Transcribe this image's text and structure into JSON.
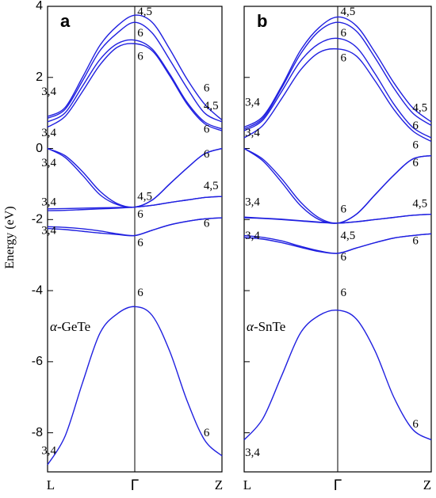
{
  "chart_data": [
    {
      "type": "line",
      "panel_label": "a",
      "material_prefix": "α",
      "material_suffix": "-GeTe",
      "ylabel": "Energy (eV)",
      "ylim": [
        -9.1,
        4.0
      ],
      "yticks": [
        4,
        2,
        0,
        -2,
        -4,
        -6,
        -8
      ],
      "ytick_labels": [
        "4",
        "2",
        "0",
        "-2",
        "-4",
        "-6",
        "-8"
      ],
      "xticks": [
        "L",
        "Γ",
        "Z"
      ],
      "band_color": "#2020e0",
      "x": [
        0,
        0.1,
        0.2,
        0.3,
        0.4,
        0.5,
        0.6,
        0.7,
        0.8,
        0.9,
        1.0
      ],
      "series": [
        {
          "values": [
            -8.9,
            -8.1,
            -6.6,
            -5.2,
            -4.65,
            -4.45,
            -4.7,
            -5.7,
            -7.1,
            -8.2,
            -8.65
          ]
        },
        {
          "values": [
            -2.2,
            -2.22,
            -2.26,
            -2.32,
            -2.4,
            -2.45,
            -2.3,
            -2.15,
            -2.05,
            -1.98,
            -1.95
          ]
        },
        {
          "values": [
            -2.25,
            -2.28,
            -2.33,
            -2.38,
            -2.42,
            -2.45,
            -2.3,
            -2.15,
            -2.05,
            -1.98,
            -1.95
          ]
        },
        {
          "values": [
            -1.75,
            -1.74,
            -1.72,
            -1.7,
            -1.68,
            -1.65,
            -1.6,
            -1.52,
            -1.45,
            -1.38,
            -1.35
          ]
        },
        {
          "values": [
            -1.7,
            -1.69,
            -1.68,
            -1.67,
            -1.66,
            -1.65,
            -1.6,
            -1.52,
            -1.45,
            -1.38,
            -1.35
          ]
        },
        {
          "values": [
            0,
            -0.2,
            -0.65,
            -1.2,
            -1.55,
            -1.65,
            -1.45,
            -1.0,
            -0.55,
            -0.15,
            0
          ]
        },
        {
          "values": [
            0,
            -0.25,
            -0.75,
            -1.3,
            -1.58,
            -1.65,
            -1.45,
            -1.0,
            -0.55,
            -0.15,
            0
          ]
        },
        {
          "values": [
            0.6,
            0.9,
            1.6,
            2.35,
            2.85,
            2.95,
            2.75,
            2.05,
            1.25,
            0.7,
            0.5
          ]
        },
        {
          "values": [
            0.75,
            1.0,
            1.75,
            2.5,
            2.95,
            3.05,
            2.8,
            2.1,
            1.3,
            0.75,
            0.55
          ]
        },
        {
          "values": [
            0.85,
            1.1,
            1.9,
            2.75,
            3.25,
            3.55,
            3.25,
            2.5,
            1.7,
            1.0,
            0.75
          ]
        },
        {
          "values": [
            0.9,
            1.15,
            2.0,
            2.9,
            3.45,
            3.75,
            3.55,
            2.8,
            1.95,
            1.25,
            0.8
          ]
        }
      ],
      "annotations": [
        {
          "text": "3,4",
          "x": -0.035,
          "y": 1.5
        },
        {
          "text": "3,4",
          "x": -0.035,
          "y": 0.35
        },
        {
          "text": "3,4",
          "x": -0.035,
          "y": -0.5
        },
        {
          "text": "3,4",
          "x": -0.035,
          "y": -1.6
        },
        {
          "text": "3,4",
          "x": -0.035,
          "y": -2.4
        },
        {
          "text": "3,4",
          "x": -0.035,
          "y": -8.6
        },
        {
          "text": "4,5",
          "x": 0.515,
          "y": 3.75
        },
        {
          "text": "6",
          "x": 0.515,
          "y": 3.15
        },
        {
          "text": "6",
          "x": 0.515,
          "y": 2.5
        },
        {
          "text": "4,5",
          "x": 0.515,
          "y": -1.45
        },
        {
          "text": "6",
          "x": 0.515,
          "y": -1.95
        },
        {
          "text": "6",
          "x": 0.515,
          "y": -2.75
        },
        {
          "text": "6",
          "x": 0.515,
          "y": -4.15
        },
        {
          "text": "6",
          "x": 0.895,
          "y": 1.6
        },
        {
          "text": "4,5",
          "x": 0.895,
          "y": 1.1
        },
        {
          "text": "6",
          "x": 0.895,
          "y": 0.45
        },
        {
          "text": "6",
          "x": 0.895,
          "y": -0.25
        },
        {
          "text": "4,5",
          "x": 0.895,
          "y": -1.15
        },
        {
          "text": "6",
          "x": 0.895,
          "y": -2.2
        },
        {
          "text": "6",
          "x": 0.895,
          "y": -8.1
        }
      ]
    },
    {
      "type": "line",
      "panel_label": "b",
      "material_prefix": "α",
      "material_suffix": "-SnTe",
      "ylim": [
        -9.1,
        4.0
      ],
      "yticks": [
        4,
        2,
        0,
        -2,
        -4,
        -6,
        -8
      ],
      "xticks": [
        "L",
        "Γ",
        "Z"
      ],
      "band_color": "#2020e0",
      "x": [
        0,
        0.1,
        0.2,
        0.3,
        0.4,
        0.5,
        0.6,
        0.7,
        0.8,
        0.9,
        1.0
      ],
      "series": [
        {
          "values": [
            -8.2,
            -7.6,
            -6.4,
            -5.2,
            -4.7,
            -4.55,
            -4.8,
            -5.7,
            -7.0,
            -7.9,
            -8.2
          ]
        },
        {
          "values": [
            -2.45,
            -2.5,
            -2.6,
            -2.75,
            -2.88,
            -2.95,
            -2.8,
            -2.65,
            -2.52,
            -2.45,
            -2.4
          ]
        },
        {
          "values": [
            -2.5,
            -2.55,
            -2.65,
            -2.78,
            -2.9,
            -2.95,
            -2.8,
            -2.65,
            -2.52,
            -2.45,
            -2.4
          ]
        },
        {
          "values": [
            -1.95,
            -1.97,
            -2.0,
            -2.04,
            -2.08,
            -2.1,
            -2.06,
            -2.0,
            -1.94,
            -1.88,
            -1.85
          ]
        },
        {
          "values": [
            -1.93,
            -1.96,
            -1.99,
            -2.03,
            -2.07,
            -2.1,
            -2.06,
            -2.0,
            -1.94,
            -1.88,
            -1.85
          ]
        },
        {
          "values": [
            0,
            -0.3,
            -0.85,
            -1.5,
            -1.95,
            -2.1,
            -1.85,
            -1.3,
            -0.75,
            -0.3,
            -0.2
          ]
        },
        {
          "values": [
            0,
            -0.35,
            -0.95,
            -1.6,
            -2.0,
            -2.1,
            -1.85,
            -1.3,
            -0.75,
            -0.3,
            -0.2
          ]
        },
        {
          "values": [
            0.3,
            0.65,
            1.4,
            2.2,
            2.7,
            2.8,
            2.6,
            1.9,
            1.1,
            0.5,
            0.2
          ]
        },
        {
          "values": [
            0.5,
            0.8,
            1.6,
            2.45,
            2.95,
            3.1,
            2.85,
            2.1,
            1.25,
            0.6,
            0.3
          ]
        },
        {
          "values": [
            0.55,
            0.85,
            1.7,
            2.65,
            3.3,
            3.55,
            3.3,
            2.55,
            1.7,
            1.0,
            0.65
          ]
        },
        {
          "values": [
            0.6,
            0.9,
            1.75,
            2.75,
            3.4,
            3.7,
            3.45,
            2.7,
            1.85,
            1.15,
            0.75
          ]
        }
      ],
      "annotations": [
        {
          "text": "3,4",
          "x": 0.005,
          "y": 1.2
        },
        {
          "text": "3,4",
          "x": 0.005,
          "y": 0.35
        },
        {
          "text": "3,4",
          "x": 0.005,
          "y": -1.6
        },
        {
          "text": "3,4",
          "x": 0.005,
          "y": -2.55
        },
        {
          "text": "3,4",
          "x": 0.005,
          "y": -8.65
        },
        {
          "text": "4,5",
          "x": 0.515,
          "y": 3.75
        },
        {
          "text": "6",
          "x": 0.515,
          "y": 3.15
        },
        {
          "text": "6",
          "x": 0.515,
          "y": 2.45
        },
        {
          "text": "6",
          "x": 0.515,
          "y": -1.8
        },
        {
          "text": "4,5",
          "x": 0.515,
          "y": -2.55
        },
        {
          "text": "6",
          "x": 0.515,
          "y": -3.15
        },
        {
          "text": "6",
          "x": 0.515,
          "y": -4.15
        },
        {
          "text": "4,5",
          "x": 0.9,
          "y": 1.05
        },
        {
          "text": "6",
          "x": 0.9,
          "y": 0.55
        },
        {
          "text": "6",
          "x": 0.9,
          "y": 0.0
        },
        {
          "text": "6",
          "x": 0.9,
          "y": -0.5
        },
        {
          "text": "4,5",
          "x": 0.9,
          "y": -1.65
        },
        {
          "text": "6",
          "x": 0.9,
          "y": -2.7
        },
        {
          "text": "6",
          "x": 0.9,
          "y": -7.85
        }
      ]
    }
  ]
}
